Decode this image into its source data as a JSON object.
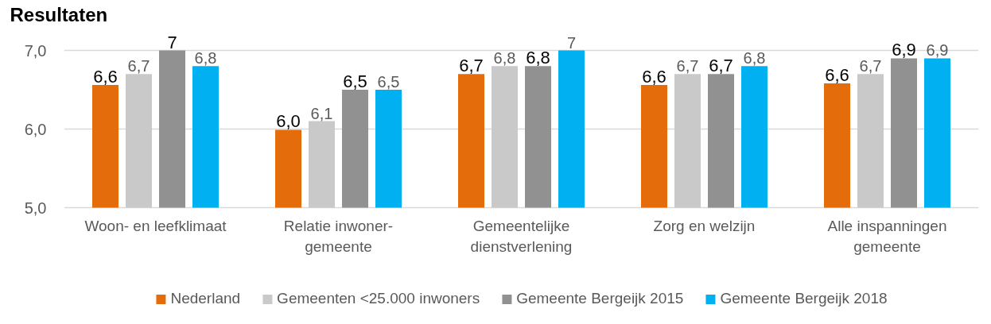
{
  "chart_data": {
    "type": "bar",
    "title": "Resultaten",
    "categories": [
      "Woon- en leefklimaat",
      "Relatie inwoner-gemeente",
      "Gemeentelijke dienstverlening",
      "Zorg en welzijn",
      "Alle inspanningen gemeente"
    ],
    "series": [
      {
        "name": "Nederland",
        "color": "#e46c0a",
        "values": [
          6.56,
          5.99,
          6.7,
          6.56,
          6.58
        ],
        "value_labels": [
          "6,6",
          "6,0",
          "6,7",
          "6,6",
          "6,6"
        ]
      },
      {
        "name": "Gemeenten <25.000 inwoners",
        "color": "#c9c9c9",
        "values": [
          6.7,
          6.1,
          6.8,
          6.7,
          6.7
        ],
        "value_labels": [
          "6,7",
          "6,1",
          "6,8",
          "6,7",
          "6,7"
        ]
      },
      {
        "name": "Gemeente Bergeijk 2015",
        "color": "#919191",
        "values": [
          7.0,
          6.5,
          6.8,
          6.7,
          6.9
        ],
        "value_labels": [
          "7",
          "6,5",
          "6,8",
          "6,7",
          "6,9"
        ]
      },
      {
        "name": "Gemeente Bergeijk 2018",
        "color": "#00b0f0",
        "values": [
          6.8,
          6.5,
          7.0,
          6.8,
          6.9
        ],
        "value_labels": [
          "6,8",
          "6,5",
          "7",
          "6,8",
          "6,9"
        ]
      }
    ],
    "ylim": [
      5,
      7
    ],
    "yticks": [
      {
        "value": 5,
        "label": "5,0"
      },
      {
        "value": 6,
        "label": "6,0"
      },
      {
        "value": 7,
        "label": "7,0"
      }
    ],
    "grid": "y",
    "legend": "bottom"
  }
}
